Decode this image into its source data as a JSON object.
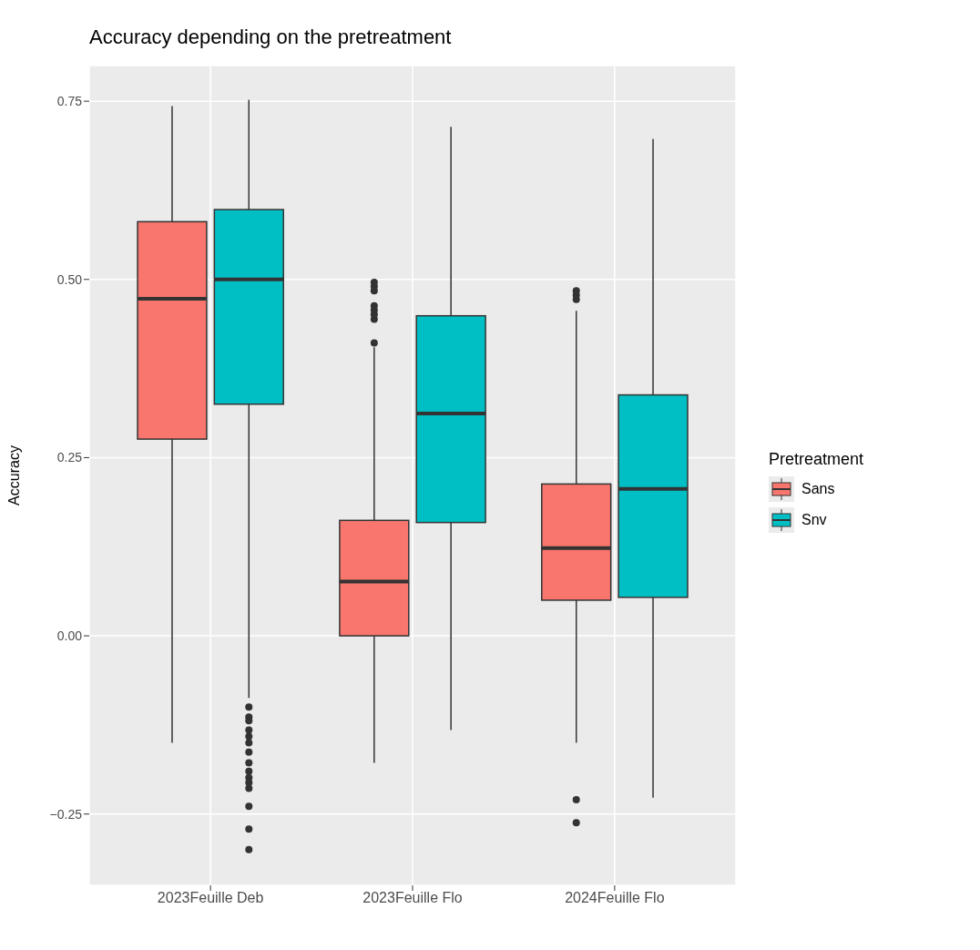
{
  "chart_data": {
    "type": "box",
    "title": "Accuracy depending on the pretreatment",
    "ylabel": "Accuracy",
    "legend_title": "Pretreatment",
    "categories": [
      "2023Feuille  Deb",
      "2023Feuille  Flo",
      "2024Feuille  Flo"
    ],
    "ylim": [
      -0.35,
      0.8
    ],
    "yticks": [
      {
        "value": -0.25,
        "label": "−0.25"
      },
      {
        "value": 0,
        "label": "0.00"
      },
      {
        "value": 0.25,
        "label": "0.25"
      },
      {
        "value": 0.5,
        "label": "0.50"
      },
      {
        "value": 0.75,
        "label": "0.75"
      }
    ],
    "grid": true,
    "legend": "right",
    "series": [
      {
        "name": "Sans",
        "color": "#f8766d",
        "boxes": [
          {
            "low": -0.15,
            "q1": 0.276,
            "median": 0.473,
            "q3": 0.581,
            "high": 0.743
          },
          {
            "low": -0.178,
            "q1": 0.0,
            "median": 0.076,
            "q3": 0.162,
            "high": 0.405,
            "outliers": [
              0.411,
              0.444,
              0.451,
              0.457,
              0.463,
              0.484,
              0.49,
              0.496
            ]
          },
          {
            "low": -0.15,
            "q1": 0.05,
            "median": 0.123,
            "q3": 0.213,
            "high": 0.456,
            "outliers": [
              0.472,
              0.478,
              0.484,
              -0.23,
              -0.262
            ]
          }
        ]
      },
      {
        "name": "Snv",
        "color": "#00bfc4",
        "boxes": [
          {
            "low": -0.087,
            "q1": 0.325,
            "median": 0.5,
            "q3": 0.598,
            "high": 0.752,
            "outliers": [
              -0.1,
              -0.114,
              -0.119,
              -0.132,
              -0.141,
              -0.15,
              -0.163,
              -0.178,
              -0.19,
              -0.199,
              -0.206,
              -0.214,
              -0.239,
              -0.271,
              -0.3
            ]
          },
          {
            "low": -0.132,
            "q1": 0.159,
            "median": 0.312,
            "q3": 0.449,
            "high": 0.714
          },
          {
            "low": -0.227,
            "q1": 0.054,
            "median": 0.206,
            "q3": 0.338,
            "high": 0.697
          }
        ]
      }
    ]
  }
}
